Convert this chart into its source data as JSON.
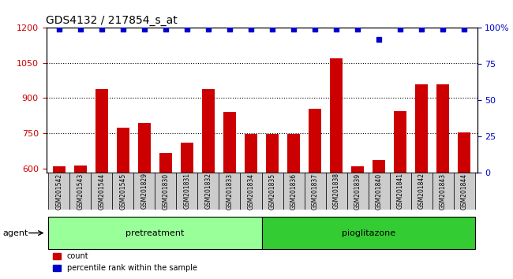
{
  "title": "GDS4132 / 217854_s_at",
  "samples": [
    "GSM201542",
    "GSM201543",
    "GSM201544",
    "GSM201545",
    "GSM201829",
    "GSM201830",
    "GSM201831",
    "GSM201832",
    "GSM201833",
    "GSM201834",
    "GSM201835",
    "GSM201836",
    "GSM201837",
    "GSM201838",
    "GSM201839",
    "GSM201840",
    "GSM201841",
    "GSM201842",
    "GSM201843",
    "GSM201844"
  ],
  "counts": [
    608,
    612,
    940,
    775,
    795,
    665,
    710,
    940,
    840,
    745,
    745,
    745,
    855,
    1070,
    608,
    635,
    845,
    960,
    960,
    755
  ],
  "percentile_ranks": [
    99,
    99,
    99,
    99,
    99,
    99,
    99,
    99,
    99,
    99,
    99,
    99,
    99,
    99,
    99,
    92,
    99,
    99,
    99,
    99
  ],
  "pretreatment_count": 10,
  "pioglitazone_count": 10,
  "ylim_left": [
    580,
    1200
  ],
  "ylim_right": [
    0,
    100
  ],
  "yticks_left": [
    600,
    750,
    900,
    1050,
    1200
  ],
  "yticks_right": [
    0,
    25,
    50,
    75,
    100
  ],
  "bar_color": "#cc0000",
  "dot_color": "#0000cc",
  "pretreatment_color": "#99ff99",
  "pioglitazone_color": "#33cc33",
  "bg_color": "#cccccc",
  "agent_label": "agent",
  "pretreatment_label": "pretreatment",
  "pioglitazone_label": "pioglitazone",
  "legend_count_label": "count",
  "legend_pct_label": "percentile rank within the sample"
}
